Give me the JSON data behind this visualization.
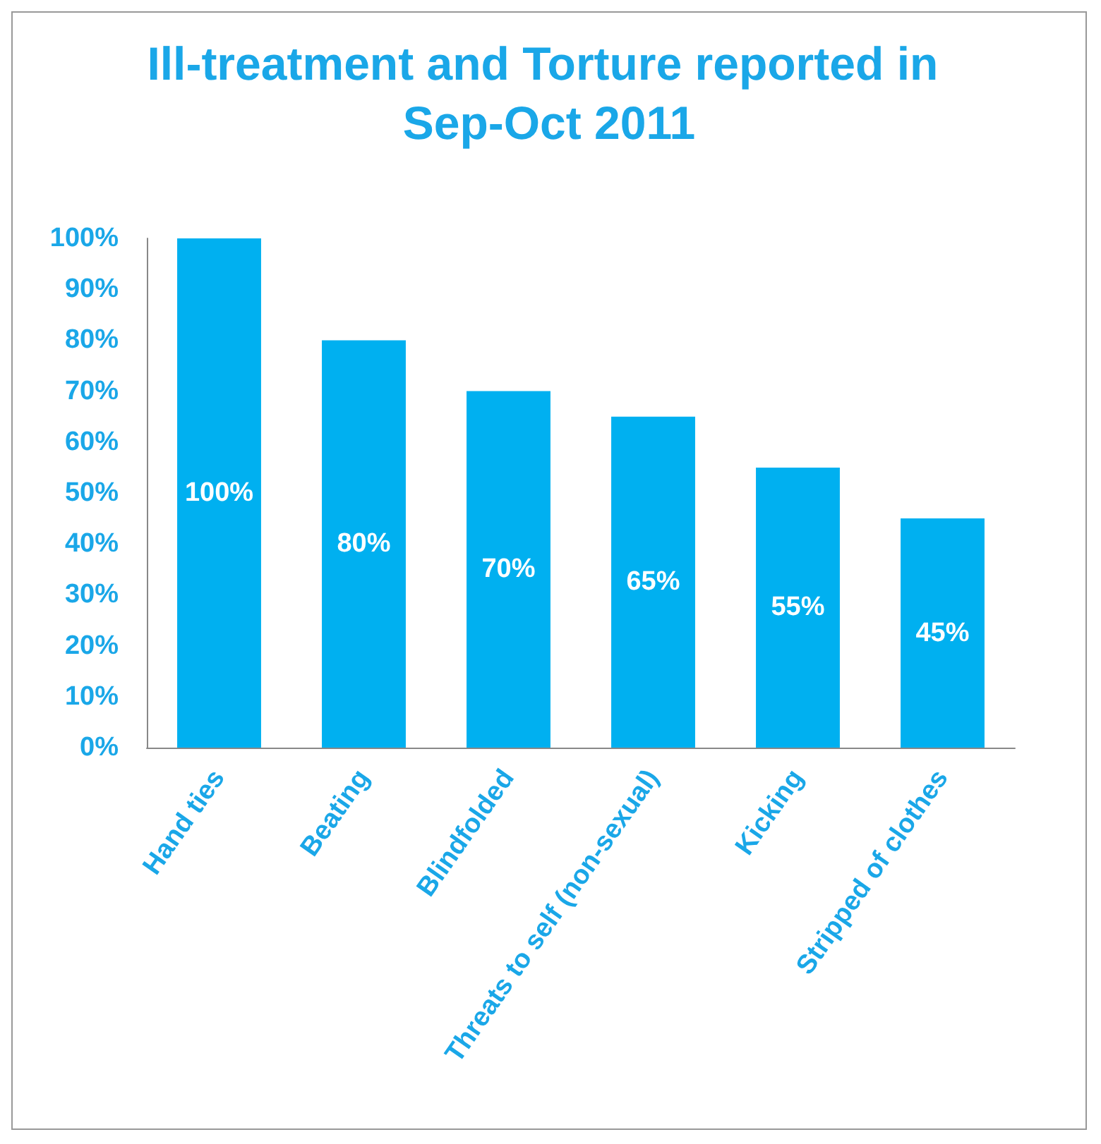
{
  "chart_data": {
    "type": "bar",
    "title": "Ill-treatment and Torture reported in Sep-Oct 2011",
    "categories": [
      "Hand ties",
      "Beating",
      "Blindfolded",
      "Threats to self (non-sexual)",
      "Kicking",
      "Stripped of clothes"
    ],
    "values": [
      100,
      80,
      70,
      65,
      55,
      45
    ],
    "value_labels": [
      "100%",
      "80%",
      "70%",
      "65%",
      "55%",
      "45%"
    ],
    "color": "#00b0f0",
    "ylim": [
      0,
      100
    ],
    "yticks": [
      {
        "value": 0,
        "label": "0%"
      },
      {
        "value": 10,
        "label": "10%"
      },
      {
        "value": 20,
        "label": "20%"
      },
      {
        "value": 30,
        "label": "30%"
      },
      {
        "value": 40,
        "label": "40%"
      },
      {
        "value": 50,
        "label": "50%"
      },
      {
        "value": 60,
        "label": "60%"
      },
      {
        "value": 70,
        "label": "70%"
      },
      {
        "value": 80,
        "label": "80%"
      },
      {
        "value": 90,
        "label": "90%"
      },
      {
        "value": 100,
        "label": "100%"
      }
    ],
    "grid": false
  }
}
